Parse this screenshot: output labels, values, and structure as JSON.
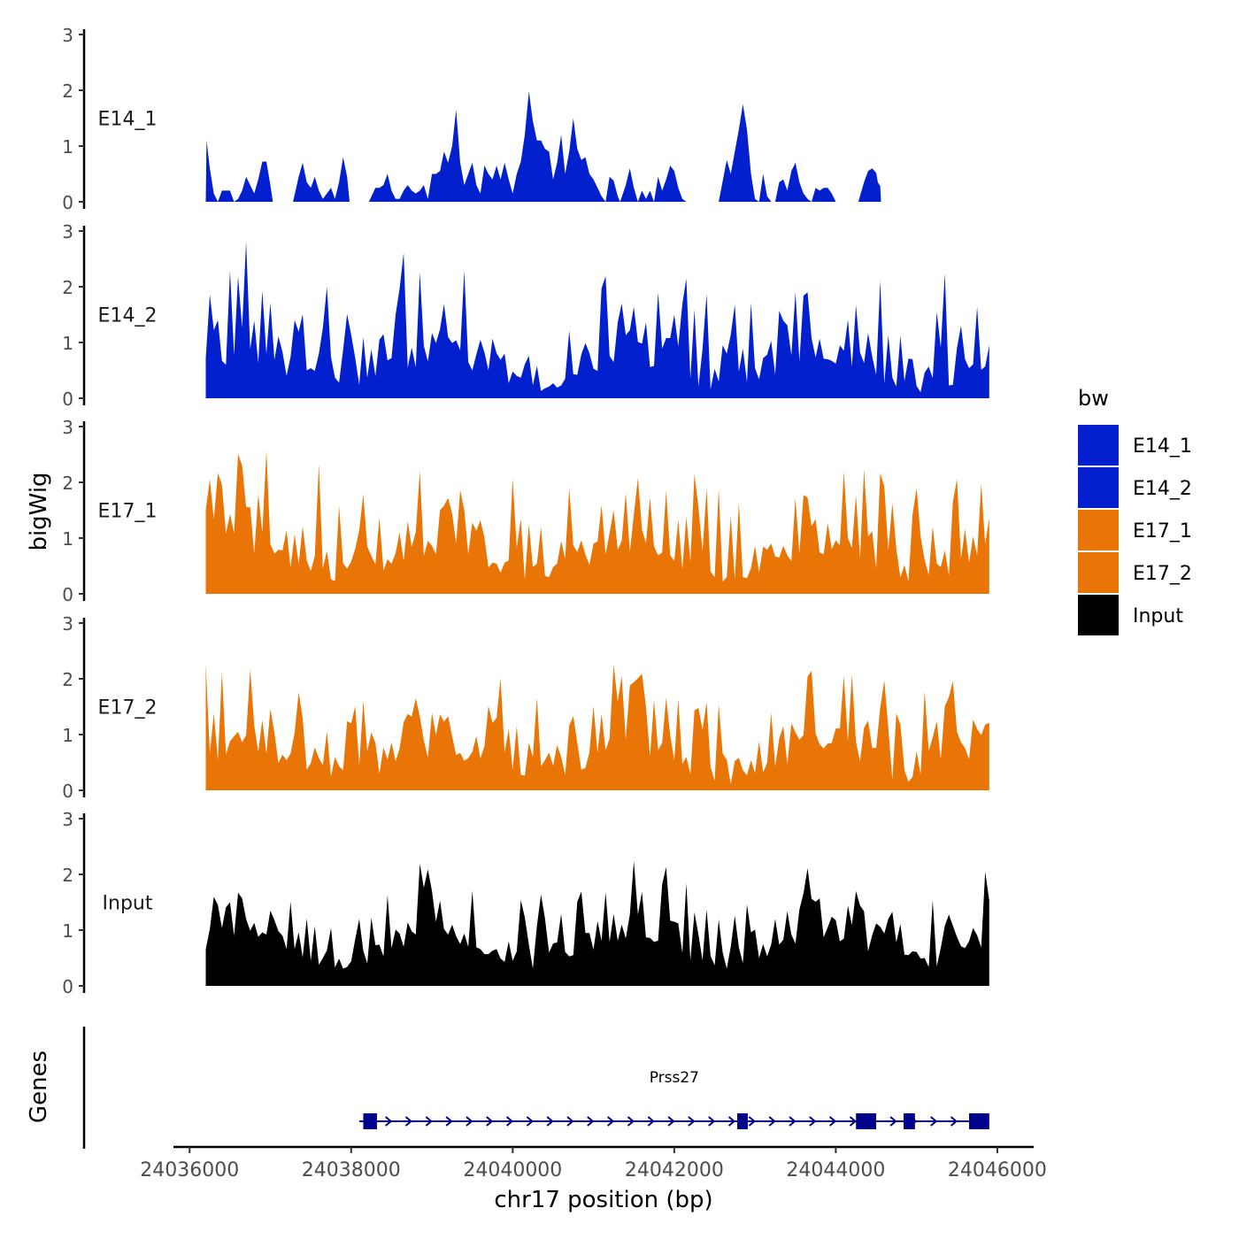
{
  "chart_data": {
    "type": "area",
    "ylabel": "bigWig",
    "xlabel": "chr17 position (bp)",
    "genes_label": "Genes",
    "xlim": [
      24035800,
      24046450
    ],
    "x_ticks": [
      24036000,
      24038000,
      24040000,
      24042000,
      24044000,
      24046000
    ],
    "x_tick_labels": [
      "24036000",
      "24038000",
      "24040000",
      "24042000",
      "24044000",
      "24046000"
    ],
    "ylim": [
      0,
      3
    ],
    "y_ticks": [
      0,
      1,
      2,
      3
    ],
    "y_tick_labels": [
      "0",
      "1",
      "2",
      "3"
    ],
    "legend": {
      "title": "bw",
      "items": [
        {
          "label": "E14_1",
          "color": "#0320CE"
        },
        {
          "label": "E14_2",
          "color": "#0320CE"
        },
        {
          "label": "E17_1",
          "color": "#E87506"
        },
        {
          "label": "E17_2",
          "color": "#E87506"
        },
        {
          "label": "Input",
          "color": "#000000"
        }
      ]
    },
    "series": [
      {
        "name": "E14_1",
        "color": "#0320CE",
        "points": [
          [
            24036200,
            0
          ],
          [
            24036210,
            1.1
          ],
          [
            24036250,
            0.6
          ],
          [
            24036300,
            0.15
          ],
          [
            24036350,
            0.0
          ],
          [
            24036400,
            0.2
          ],
          [
            24036450,
            0.2
          ],
          [
            24036500,
            0.2
          ],
          [
            24036550,
            0.0
          ],
          [
            24036600,
            0.05
          ],
          [
            24036650,
            0.2
          ],
          [
            24036700,
            0.45
          ],
          [
            24036750,
            0.3
          ],
          [
            24036800,
            0.15
          ],
          [
            24036850,
            0.4
          ],
          [
            24036900,
            0.72
          ],
          [
            24036950,
            0.72
          ],
          [
            24037000,
            0.3
          ],
          [
            24037030,
            0.0
          ],
          [
            24037060,
            null
          ],
          [
            24037250,
            null
          ],
          [
            24037280,
            0.0
          ],
          [
            24037350,
            0.45
          ],
          [
            24037400,
            0.7
          ],
          [
            24037450,
            0.35
          ],
          [
            24037500,
            0.25
          ],
          [
            24037550,
            0.45
          ],
          [
            24037600,
            0.2
          ],
          [
            24037650,
            0.05
          ],
          [
            24037700,
            0.15
          ],
          [
            24037750,
            0.25
          ],
          [
            24037800,
            0.05
          ],
          [
            24037850,
            0.35
          ],
          [
            24037900,
            0.8
          ],
          [
            24037950,
            0.45
          ],
          [
            24037980,
            0.0
          ],
          [
            24038010,
            null
          ],
          [
            24038190,
            null
          ],
          [
            24038220,
            0.0
          ],
          [
            24038300,
            0.25
          ],
          [
            24038350,
            0.25
          ],
          [
            24038400,
            0.3
          ],
          [
            24038450,
            0.5
          ],
          [
            24038500,
            0.2
          ],
          [
            24038550,
            0.05
          ],
          [
            24038600,
            0.05
          ],
          [
            24038650,
            0.2
          ],
          [
            24038700,
            0.3
          ],
          [
            24038750,
            0.2
          ],
          [
            24038800,
            0.15
          ],
          [
            24038850,
            0.2
          ],
          [
            24038900,
            0.3
          ],
          [
            24038950,
            0.05
          ],
          [
            24039000,
            0.5
          ],
          [
            24039050,
            0.5
          ],
          [
            24039100,
            0.55
          ],
          [
            24039150,
            0.9
          ],
          [
            24039200,
            0.7
          ],
          [
            24039250,
            1.0
          ],
          [
            24039300,
            1.65
          ],
          [
            24039350,
            0.7
          ],
          [
            24039400,
            0.3
          ],
          [
            24039450,
            0.5
          ],
          [
            24039500,
            0.7
          ],
          [
            24039550,
            0.3
          ],
          [
            24039600,
            0.15
          ],
          [
            24039650,
            0.65
          ],
          [
            24039700,
            0.5
          ],
          [
            24039750,
            0.4
          ],
          [
            24039800,
            0.65
          ],
          [
            24039850,
            0.4
          ],
          [
            24039900,
            0.7
          ],
          [
            24039950,
            0.4
          ],
          [
            24040000,
            0.15
          ],
          [
            24040050,
            0.5
          ],
          [
            24040100,
            0.72
          ],
          [
            24040150,
            1.2
          ],
          [
            24040200,
            1.98
          ],
          [
            24040250,
            1.45
          ],
          [
            24040300,
            1.1
          ],
          [
            24040350,
            1.1
          ],
          [
            24040400,
            0.95
          ],
          [
            24040450,
            0.9
          ],
          [
            24040500,
            0.4
          ],
          [
            24040550,
            0.7
          ],
          [
            24040600,
            1.2
          ],
          [
            24040650,
            0.5
          ],
          [
            24040700,
            0.9
          ],
          [
            24040750,
            1.5
          ],
          [
            24040800,
            0.95
          ],
          [
            24040850,
            0.75
          ],
          [
            24040900,
            0.8
          ],
          [
            24040950,
            0.5
          ],
          [
            24041000,
            0.4
          ],
          [
            24041050,
            0.25
          ],
          [
            24041100,
            0.1
          ],
          [
            24041150,
            0.0
          ],
          [
            24041200,
            0.45
          ],
          [
            24041250,
            0.38
          ],
          [
            24041300,
            0.1
          ],
          [
            24041330,
            0.0
          ],
          [
            24041400,
            0.3
          ],
          [
            24041450,
            0.6
          ],
          [
            24041500,
            0.25
          ],
          [
            24041550,
            0.0
          ],
          [
            24041600,
            0.2
          ],
          [
            24041650,
            0.05
          ],
          [
            24041700,
            0.2
          ],
          [
            24041750,
            0.0
          ],
          [
            24041800,
            0.45
          ],
          [
            24041850,
            0.2
          ],
          [
            24041900,
            0.4
          ],
          [
            24041950,
            0.65
          ],
          [
            24042000,
            0.55
          ],
          [
            24042050,
            0.25
          ],
          [
            24042100,
            0.05
          ],
          [
            24042150,
            0.0
          ],
          [
            24042200,
            null
          ],
          [
            24042530,
            null
          ],
          [
            24042550,
            0.0
          ],
          [
            24042650,
            0.75
          ],
          [
            24042700,
            0.5
          ],
          [
            24042750,
            0.9
          ],
          [
            24042800,
            1.3
          ],
          [
            24042850,
            1.75
          ],
          [
            24042900,
            1.3
          ],
          [
            24042950,
            0.5
          ],
          [
            24043000,
            0.05
          ],
          [
            24043050,
            0.0
          ],
          [
            24043100,
            0.5
          ],
          [
            24043150,
            0.1
          ],
          [
            24043200,
            0.0
          ],
          [
            24043250,
            0.0
          ],
          [
            24043300,
            0.35
          ],
          [
            24043350,
            0.4
          ],
          [
            24043400,
            0.2
          ],
          [
            24043450,
            0.55
          ],
          [
            24043500,
            0.7
          ],
          [
            24043550,
            0.35
          ],
          [
            24043600,
            0.15
          ],
          [
            24043650,
            0.05
          ],
          [
            24043700,
            0.0
          ],
          [
            24043750,
            0.25
          ],
          [
            24043800,
            0.2
          ],
          [
            24043850,
            0.25
          ],
          [
            24043900,
            0.25
          ],
          [
            24043950,
            0.15
          ],
          [
            24044000,
            0.0
          ],
          [
            24044050,
            0.0
          ],
          [
            24044100,
            null
          ],
          [
            24044250,
            null
          ],
          [
            24044280,
            0.0
          ],
          [
            24044350,
            0.35
          ],
          [
            24044400,
            0.55
          ],
          [
            24044450,
            0.6
          ],
          [
            24044500,
            0.52
          ],
          [
            24044520,
            0.35
          ],
          [
            24044550,
            0.28
          ],
          [
            24044560,
            0.0
          ],
          [
            24044600,
            0.0
          ]
        ]
      },
      {
        "name": "E14_2",
        "color": "#0320CE",
        "points": []
      },
      {
        "name": "E17_1",
        "color": "#E87506",
        "points": []
      },
      {
        "name": "E17_2",
        "color": "#E87506",
        "points": []
      },
      {
        "name": "Input",
        "color": "#000000",
        "points": []
      }
    ],
    "genes": [
      {
        "name": "Prss27",
        "color": "#00008B",
        "start": 24038100,
        "end": 24045900,
        "strand": "+",
        "exons": [
          [
            24038150,
            24038320
          ],
          [
            24042780,
            24042910
          ],
          [
            24044250,
            24044500
          ],
          [
            24044840,
            24044980
          ],
          [
            24045650,
            24045900
          ]
        ]
      }
    ]
  }
}
